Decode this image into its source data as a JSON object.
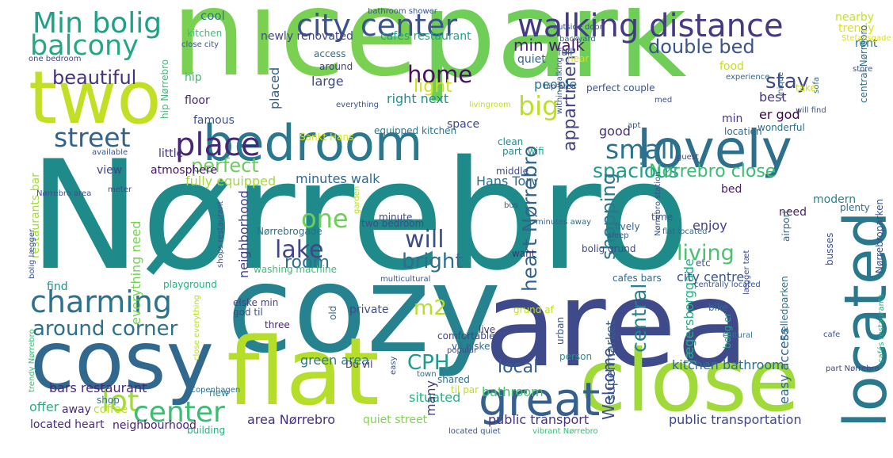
{
  "words": [
    {
      "text": "Nørrebro",
      "color": "#1f8a8a"
    },
    {
      "text": "nice",
      "color": "#7ad151"
    },
    {
      "text": "park",
      "color": "#6ece58"
    },
    {
      "text": "cozy",
      "color": "#26828e"
    },
    {
      "text": "area",
      "color": "#3e4a89"
    },
    {
      "text": "cosy",
      "color": "#31688e"
    },
    {
      "text": "two",
      "color": "#c2df23"
    },
    {
      "text": "flat",
      "color": "#b5de2b"
    },
    {
      "text": "close",
      "color": "#a0da39"
    },
    {
      "text": "bedroom",
      "color": "#2a788e"
    },
    {
      "text": "located",
      "color": "#2a788e"
    },
    {
      "text": "lovely",
      "color": "#2d708e"
    },
    {
      "text": "great",
      "color": "#355f8d"
    },
    {
      "text": "Min bolig",
      "color": "#1fa187"
    },
    {
      "text": "city center",
      "color": "#3b528b"
    },
    {
      "text": "walking distance",
      "color": "#443983"
    },
    {
      "text": "balcony",
      "color": "#22a884"
    },
    {
      "text": "place",
      "color": "#482677"
    },
    {
      "text": "charming",
      "color": "#2c728e"
    },
    {
      "text": "lot",
      "color": "#a2da37"
    },
    {
      "text": "center",
      "color": "#3dbc74"
    },
    {
      "text": "street",
      "color": "#33638d"
    },
    {
      "text": "small",
      "color": "#2c728e"
    },
    {
      "text": "big",
      "color": "#bddf26"
    },
    {
      "text": "around corner",
      "color": "#2d708e"
    },
    {
      "text": "beautiful",
      "color": "#46307e"
    },
    {
      "text": "home",
      "color": "#471063"
    },
    {
      "text": "spacious",
      "color": "#1f9e89"
    },
    {
      "text": "perfect",
      "color": "#6ccd5a"
    },
    {
      "text": "double bed",
      "color": "#3b528b"
    },
    {
      "text": "stay",
      "color": "#3e4989"
    },
    {
      "text": "min walk",
      "color": "#481f70"
    },
    {
      "text": "Nørrebro close",
      "color": "#3dbc74"
    },
    {
      "text": "one",
      "color": "#6ece58"
    },
    {
      "text": "will",
      "color": "#3d4d8a"
    },
    {
      "text": "lake",
      "color": "#404688"
    },
    {
      "text": "room",
      "color": "#2e6f8e"
    },
    {
      "text": "bright",
      "color": "#2e6e8e"
    },
    {
      "text": "living",
      "color": "#4ac16d"
    },
    {
      "text": "shopping",
      "color": "#2a788e"
    },
    {
      "text": "heart Nørrebro",
      "color": "#33638d"
    },
    {
      "text": "appartment",
      "color": "#414487"
    },
    {
      "text": "m2",
      "color": "#b5de2b"
    },
    {
      "text": "CPH",
      "color": "#1f9a8a"
    },
    {
      "text": "local",
      "color": "#355e8d"
    },
    {
      "text": "central",
      "color": "#26818e"
    },
    {
      "text": "Welcome",
      "color": "#3e4c8a"
    },
    {
      "text": "light",
      "color": "#d0e11c"
    },
    {
      "text": "supermarket",
      "color": "#355f8d"
    },
    {
      "text": "kitchen bathroom",
      "color": "#2e6d8e"
    },
    {
      "text": "green area",
      "color": "#2a788e"
    },
    {
      "text": "bars restaurant",
      "color": "#482878"
    },
    {
      "text": "situated",
      "color": "#29af7f"
    },
    {
      "text": "bathroom",
      "color": "#4ac16d"
    },
    {
      "text": "public transport",
      "color": "#46337f"
    },
    {
      "text": "public transportation",
      "color": "#3f4788"
    },
    {
      "text": "area Nørrebro",
      "color": "#46307e"
    },
    {
      "text": "quiet street",
      "color": "#7fd34e"
    },
    {
      "text": "neighbourhood",
      "color": "#482071"
    },
    {
      "text": "located heart",
      "color": "#472c7a"
    },
    {
      "text": "Jægersborggade",
      "color": "#27ad81"
    },
    {
      "text": "easy access",
      "color": "#32658e"
    },
    {
      "text": "Hans Torv",
      "color": "#2c718e"
    },
    {
      "text": "minutes walk",
      "color": "#31688e"
    },
    {
      "text": "fully equipped",
      "color": "#a5db36"
    },
    {
      "text": "atmosphere",
      "color": "#471365"
    },
    {
      "text": "city centre",
      "color": "#3b528b"
    },
    {
      "text": "enjoy",
      "color": "#404387"
    },
    {
      "text": "best",
      "color": "#453781"
    },
    {
      "text": "er god",
      "color": "#440154"
    },
    {
      "text": "good",
      "color": "#46307e"
    },
    {
      "text": "neighborhood",
      "color": "#423f85"
    },
    {
      "text": "everything need",
      "color": "#75d054"
    },
    {
      "text": "restaurants bar",
      "color": "#a8db34"
    },
    {
      "text": "offer",
      "color": "#28ae80"
    },
    {
      "text": "away",
      "color": "#472c7a"
    },
    {
      "text": "coffee",
      "color": "#b8de29"
    },
    {
      "text": "shop",
      "color": "#2e6f8e"
    },
    {
      "text": "many",
      "color": "#433e85"
    },
    {
      "text": "people",
      "color": "#2a778e"
    },
    {
      "text": "large",
      "color": "#3e4a89"
    },
    {
      "text": "quiet",
      "color": "#35608d"
    },
    {
      "text": "right next",
      "color": "#228c8d"
    },
    {
      "text": "placed",
      "color": "#34608d"
    },
    {
      "text": "cool",
      "color": "#2a788e"
    },
    {
      "text": "newly renovated",
      "color": "#404688"
    },
    {
      "text": "cafes restaurant",
      "color": "#20a386"
    },
    {
      "text": "nearby",
      "color": "#cae11f"
    },
    {
      "text": "trendy",
      "color": "#dde318"
    },
    {
      "text": "access",
      "color": "#2e6e8e"
    },
    {
      "text": "around",
      "color": "#423f85"
    },
    {
      "text": "hip",
      "color": "#3dbc74"
    },
    {
      "text": "floor",
      "color": "#482475"
    },
    {
      "text": "famous",
      "color": "#3b528b"
    },
    {
      "text": "little",
      "color": "#46307e"
    },
    {
      "text": "view",
      "color": "#424186"
    },
    {
      "text": "find",
      "color": "#21918c"
    },
    {
      "text": "space",
      "color": "#3f4788"
    },
    {
      "text": "clean",
      "color": "#25858e"
    },
    {
      "text": "part",
      "color": "#23898e"
    },
    {
      "text": "wifi",
      "color": "#1e9c89"
    },
    {
      "text": "middle",
      "color": "#3e4989"
    },
    {
      "text": "food",
      "color": "#c8e020"
    },
    {
      "text": "rent",
      "color": "#2c728e"
    },
    {
      "text": "min",
      "color": "#453882"
    },
    {
      "text": "location",
      "color": "#31688e"
    },
    {
      "text": "wonderful",
      "color": "#2d708e"
    },
    {
      "text": "modern",
      "color": "#27808e"
    },
    {
      "text": "plenty",
      "color": "#2e6f8e"
    },
    {
      "text": "bed",
      "color": "#481d6f"
    },
    {
      "text": "need",
      "color": "#482173"
    },
    {
      "text": "etc",
      "color": "#3a548c"
    },
    {
      "text": "time",
      "color": "#3b528b"
    },
    {
      "text": "lively",
      "color": "#31678e"
    },
    {
      "text": "sleep",
      "color": "#3b528b"
    },
    {
      "text": "want",
      "color": "#472d7b"
    },
    {
      "text": "minute",
      "color": "#3e4989"
    },
    {
      "text": "two bedroom",
      "color": "#3e4c8a"
    },
    {
      "text": "Nørrebrogade",
      "color": "#2e6f8e"
    },
    {
      "text": "washing machine",
      "color": "#3dbc74"
    },
    {
      "text": "playground",
      "color": "#29af7f"
    },
    {
      "text": "cafes bars",
      "color": "#31688e"
    },
    {
      "text": "bike",
      "color": "#2e6e8e"
    },
    {
      "text": "live",
      "color": "#46327e"
    },
    {
      "text": "private",
      "color": "#3d4d8a"
    },
    {
      "text": "vil elske",
      "color": "#31688e"
    },
    {
      "text": "comfortable",
      "color": "#3f4788"
    },
    {
      "text": "elske min",
      "color": "#423f85"
    },
    {
      "text": "god til",
      "color": "#3d4d8a"
    },
    {
      "text": "Du vil",
      "color": "#453781"
    },
    {
      "text": "shared",
      "color": "#2c728e"
    },
    {
      "text": "til par",
      "color": "#bddf26"
    },
    {
      "text": "building",
      "color": "#29af7f"
    },
    {
      "text": "new",
      "color": "#21918c"
    },
    {
      "text": "shops restaurant",
      "color": "#3b528b"
    },
    {
      "text": "bolig lægger",
      "color": "#3b528b"
    },
    {
      "text": "grund af",
      "color": "#c5e021"
    },
    {
      "text": "urban",
      "color": "#3a548c"
    },
    {
      "text": "person",
      "color": "#1f958b"
    },
    {
      "text": "three",
      "color": "#482475"
    },
    {
      "text": "old",
      "color": "#31688e"
    },
    {
      "text": "popular",
      "color": "#3e4989"
    },
    {
      "text": "cultural",
      "color": "#2a788e"
    },
    {
      "text": "Fælledparken",
      "color": "#2e6f8e"
    },
    {
      "text": "bolig er",
      "color": "#22a884"
    },
    {
      "text": "central Nørrebro",
      "color": "#2d708e"
    },
    {
      "text": "Nørrebroparken",
      "color": "#3b528b"
    },
    {
      "text": "cafés restaurants",
      "color": "#27ad81"
    },
    {
      "text": "experience",
      "color": "#31688e"
    },
    {
      "text": "Sankt Hans",
      "color": "#dde318"
    },
    {
      "text": "equipped kitchen",
      "color": "#2c728e"
    },
    {
      "text": "perfect couple",
      "color": "#3b528b"
    },
    {
      "text": "within walking",
      "color": "#3b528b"
    },
    {
      "text": "hip Nørrebro",
      "color": "#3dbc74"
    },
    {
      "text": "everything",
      "color": "#3b528b"
    },
    {
      "text": "livingroom",
      "color": "#bddf26"
    },
    {
      "text": "bus",
      "color": "#3b528b"
    },
    {
      "text": "minutes away",
      "color": "#31688e"
    },
    {
      "text": "garden",
      "color": "#b5de2b"
    },
    {
      "text": "Copenhagen",
      "color": "#2e6e8e"
    },
    {
      "text": "town",
      "color": "#31688e"
    },
    {
      "text": "easy",
      "color": "#3b528b"
    },
    {
      "text": "located quiet",
      "color": "#3b528b"
    },
    {
      "text": "vibrant Nørrebro",
      "color": "#3dbc74"
    },
    {
      "text": "Nørrebro station",
      "color": "#3b528b"
    },
    {
      "text": "airport",
      "color": "#31688e"
    },
    {
      "text": "busses",
      "color": "#3b528b"
    },
    {
      "text": "bolig grund",
      "color": "#3e4989"
    },
    {
      "text": "flat located",
      "color": "#31688e"
    },
    {
      "text": "centrally located",
      "color": "#3b528b"
    },
    {
      "text": "lægger tæt",
      "color": "#3e4989"
    },
    {
      "text": "cafe",
      "color": "#3b528b"
    },
    {
      "text": "part Nørrebro",
      "color": "#3e4989"
    },
    {
      "text": "multicultural",
      "color": "#3b528b"
    },
    {
      "text": "meter",
      "color": "#3e4989"
    },
    {
      "text": "Nørrebro area",
      "color": "#3b528b"
    },
    {
      "text": "available",
      "color": "#3b528b"
    },
    {
      "text": "trendy Nørrebro",
      "color": "#3dbc74"
    },
    {
      "text": "close everything",
      "color": "#b5de2b"
    },
    {
      "text": "guest",
      "color": "#3e4989"
    },
    {
      "text": "apt",
      "color": "#3b528b"
    },
    {
      "text": "med",
      "color": "#3b528b"
    },
    {
      "text": "sofa",
      "color": "#31688e"
    },
    {
      "text": "unique",
      "color": "#31688e"
    },
    {
      "text": "will find",
      "color": "#3b528b"
    },
    {
      "text": "take",
      "color": "#d0e11c"
    },
    {
      "text": "hip area",
      "color": "#3e4989"
    },
    {
      "text": "store",
      "color": "#3b528b"
    },
    {
      "text": "full",
      "color": "#31688e"
    },
    {
      "text": "Stefansgade",
      "color": "#dde318"
    },
    {
      "text": "near",
      "color": "#d0e11c"
    },
    {
      "text": "bathroom shower",
      "color": "#3b528b"
    },
    {
      "text": "kitchen",
      "color": "#3dbc74"
    },
    {
      "text": "close city",
      "color": "#3b528b"
    },
    {
      "text": "one bedroom",
      "color": "#3e4989"
    },
    {
      "text": "outside door",
      "color": "#3b528b"
    },
    {
      "text": "backyard",
      "color": "#31688e"
    }
  ]
}
